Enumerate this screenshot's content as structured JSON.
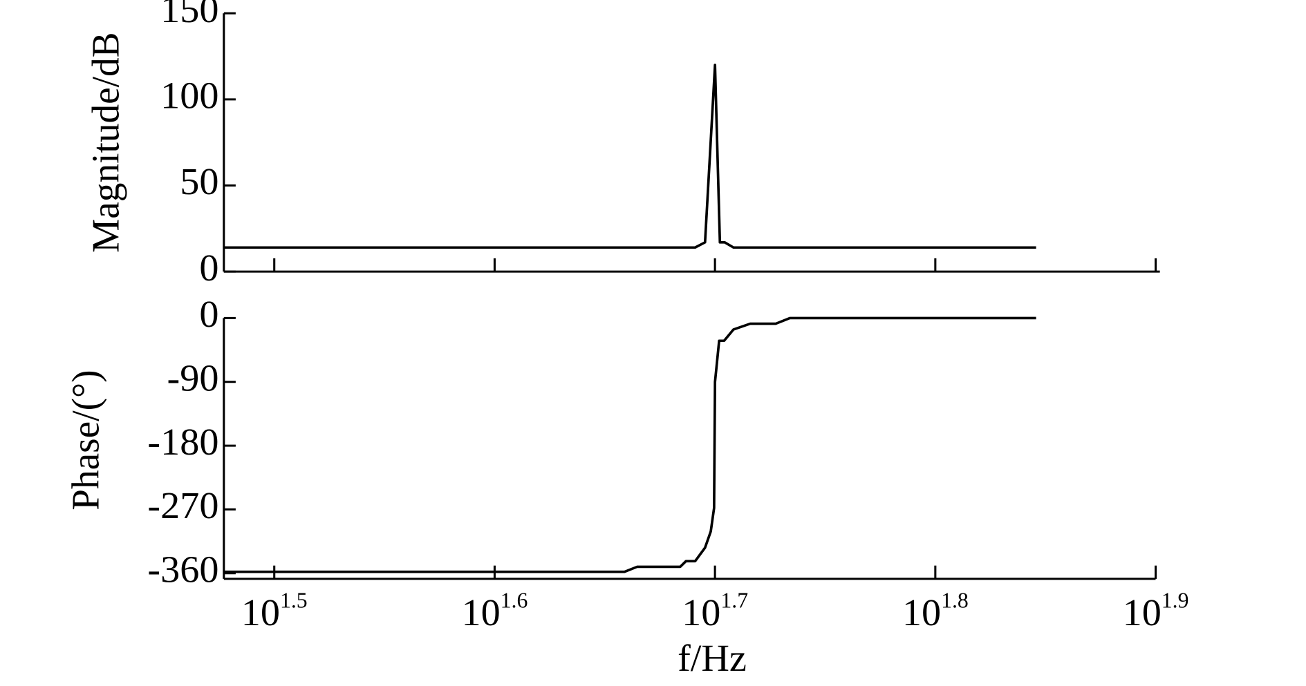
{
  "chart_data": [
    {
      "type": "line",
      "ylabel": "Magnitude/dB",
      "xscale": "log",
      "xlim": [
        30,
        79.43
      ],
      "ylim": [
        0,
        150
      ],
      "yticks": [
        0,
        50,
        100,
        150
      ],
      "xticks": [
        31.6228,
        39.8107,
        50.1187,
        63.0957,
        79.4328
      ],
      "series": [
        {
          "color": "#000000",
          "x": [
            30,
            49.09,
            49.6,
            50.12,
            50.38,
            50.63,
            51.1,
            70.1
          ],
          "values": [
            14,
            14,
            17,
            120,
            17,
            17,
            14,
            14
          ]
        }
      ]
    },
    {
      "type": "line",
      "ylabel": "Phase/(°)",
      "xlabel": "f/Hz",
      "xscale": "log",
      "xlim": [
        30,
        79.43
      ],
      "ylim": [
        -368,
        0
      ],
      "yticks": [
        -360,
        -270,
        -180,
        -90,
        0
      ],
      "xticks": [
        {
          "value": 31.6228,
          "label": "10",
          "exponent": "1.5"
        },
        {
          "value": 39.8107,
          "label": "10",
          "exponent": "1.6"
        },
        {
          "value": 50.1187,
          "label": "10",
          "exponent": "1.7"
        },
        {
          "value": 63.0957,
          "label": "10",
          "exponent": "1.8"
        },
        {
          "value": 79.4328,
          "label": "10",
          "exponent": "1.9"
        }
      ],
      "series": [
        {
          "color": "#000000",
          "x": [
            30,
            45.6,
            46.2,
            48.33,
            48.62,
            49.09,
            49.6,
            49.9,
            50.07,
            50.12,
            50.34,
            50.6,
            51.1,
            52.0,
            53.4,
            54.2,
            70.1
          ],
          "values": [
            -358,
            -358,
            -351,
            -351,
            -343,
            -343,
            -324,
            -301,
            -268,
            -90,
            -32,
            -32,
            -16,
            -8,
            -8,
            0,
            0
          ]
        }
      ]
    }
  ]
}
